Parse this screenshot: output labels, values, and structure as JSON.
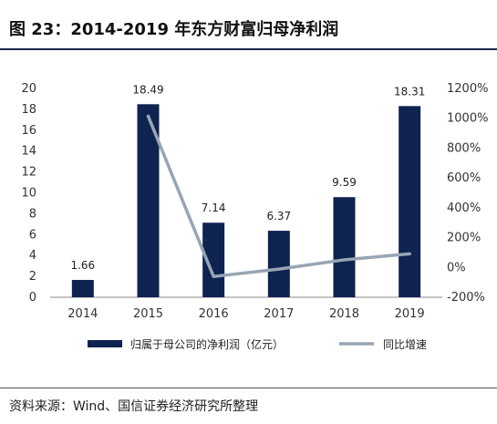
{
  "title": "图 23：2014-2019 年东方财富归母净利润",
  "source": "资料来源：Wind、国信证券经济研究所整理",
  "chart_data": {
    "type": "bar",
    "categories": [
      "2014",
      "2015",
      "2016",
      "2017",
      "2018",
      "2019"
    ],
    "series": [
      {
        "name": "归属于母公司的净利润（亿元）",
        "type": "bar",
        "axis": "left",
        "color": "#0f2350",
        "values": [
          1.66,
          18.49,
          7.14,
          6.37,
          9.59,
          18.31
        ],
        "labels": [
          "1.66",
          "18.49",
          "7.14",
          "6.37",
          "9.59",
          "18.31"
        ]
      },
      {
        "name": "同比增速",
        "type": "line",
        "axis": "right",
        "color": "#97a5b4",
        "values": [
          null,
          1014,
          -61,
          -11,
          51,
          91
        ]
      }
    ],
    "y_left": {
      "min": 0,
      "max": 20,
      "ticks": [
        "0",
        "2",
        "4",
        "6",
        "8",
        "10",
        "12",
        "14",
        "16",
        "18",
        "20"
      ]
    },
    "y_right": {
      "min": -200,
      "max": 1200,
      "ticks": [
        "-200%",
        "0%",
        "200%",
        "400%",
        "600%",
        "800%",
        "1000%",
        "1200%"
      ]
    },
    "grid": false,
    "legend_position": "bottom"
  }
}
